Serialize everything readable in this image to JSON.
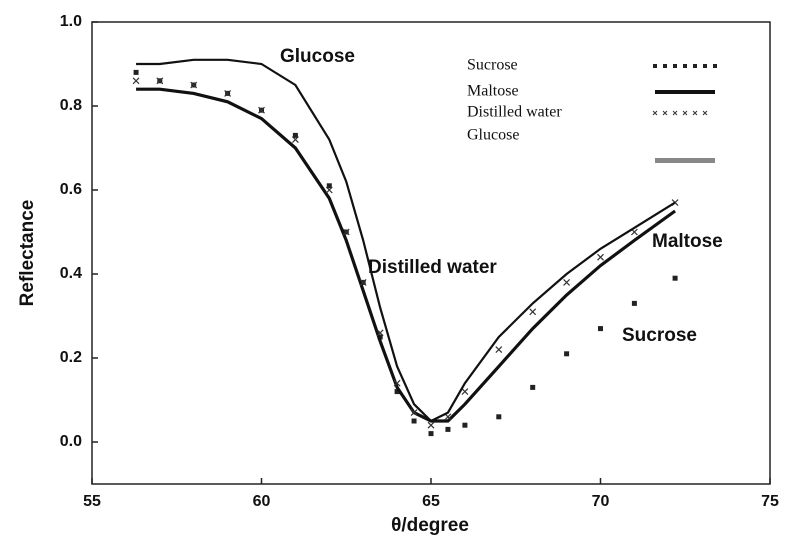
{
  "chart_data": {
    "type": "line",
    "ylabel": "Reflectance",
    "xlabel": "θ/degree",
    "xlim": [
      55,
      75
    ],
    "ylim": [
      -0.1,
      1.0
    ],
    "xticks": [
      55,
      60,
      65,
      70,
      75
    ],
    "yticks": [
      {
        "value": 0,
        "label": "0.0"
      },
      0.2,
      0.4,
      0.6,
      0.8,
      {
        "value": 1,
        "label": "1.0"
      }
    ],
    "legend": "top-right",
    "annotations": [
      "Glucose",
      "Distilled water",
      "Maltose",
      "Sucrose"
    ],
    "series": [
      {
        "name": "Sucrose",
        "color": "#222222",
        "marker": "square",
        "x": [
          56.3,
          57,
          58,
          59,
          60,
          61,
          62,
          62.5,
          63,
          63.5,
          64,
          64.5,
          65,
          65.5,
          66,
          67,
          68,
          69,
          70,
          71,
          72.2
        ],
        "values": [
          0.88,
          0.86,
          0.85,
          0.83,
          0.79,
          0.73,
          0.61,
          0.5,
          0.38,
          0.25,
          0.12,
          0.05,
          0.02,
          0.03,
          0.04,
          0.06,
          0.13,
          0.21,
          0.27,
          0.33,
          0.39
        ]
      },
      {
        "name": "Maltose",
        "color": "#111111",
        "marker": "thick",
        "x": [
          56.3,
          57,
          58,
          59,
          60,
          61,
          62,
          62.5,
          63,
          63.5,
          64,
          64.5,
          65,
          65.5,
          66,
          67,
          68,
          69,
          70,
          71,
          72.2
        ],
        "values": [
          0.84,
          0.84,
          0.83,
          0.81,
          0.77,
          0.7,
          0.58,
          0.48,
          0.36,
          0.24,
          0.13,
          0.07,
          0.05,
          0.05,
          0.09,
          0.18,
          0.27,
          0.35,
          0.42,
          0.48,
          0.55
        ]
      },
      {
        "name": "Distilled water",
        "color": "#333333",
        "marker": "cross",
        "x": [
          56.3,
          57,
          58,
          59,
          60,
          61,
          62,
          62.5,
          63,
          63.5,
          64,
          64.5,
          65,
          65.5,
          66,
          67,
          68,
          69,
          70,
          71,
          72.2
        ],
        "values": [
          0.86,
          0.86,
          0.85,
          0.83,
          0.79,
          0.72,
          0.6,
          0.5,
          0.38,
          0.26,
          0.14,
          0.07,
          0.04,
          0.06,
          0.12,
          0.22,
          0.31,
          0.38,
          0.44,
          0.5,
          0.57
        ]
      },
      {
        "name": "Glucose",
        "color": "#111111",
        "marker": "line",
        "x": [
          56.3,
          57,
          58,
          59,
          60,
          61,
          62,
          62.5,
          63,
          63.5,
          64,
          64.5,
          65,
          65.5,
          66,
          67,
          68,
          69,
          70,
          71,
          72.2
        ],
        "values": [
          0.9,
          0.9,
          0.91,
          0.91,
          0.9,
          0.85,
          0.72,
          0.62,
          0.48,
          0.32,
          0.18,
          0.09,
          0.05,
          0.07,
          0.14,
          0.25,
          0.33,
          0.4,
          0.46,
          0.51,
          0.57
        ]
      }
    ]
  }
}
